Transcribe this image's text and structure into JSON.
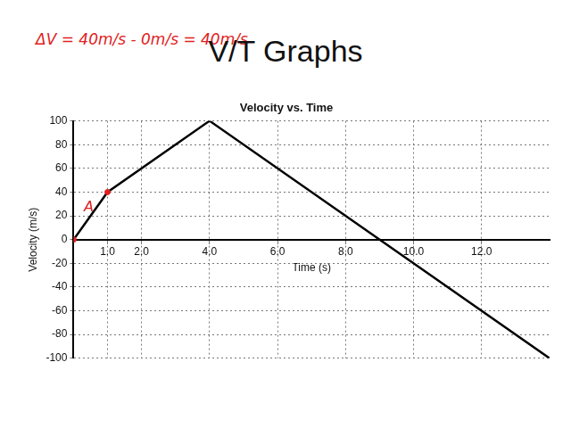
{
  "slide": {
    "title": "V/T Graphs",
    "note": "ΔV = 40m/s - 0m/s = 40m/s"
  },
  "chart_data": {
    "type": "line",
    "title": "Velocity vs. Time",
    "x_label": "Time (s)",
    "y_label": "Velocity (m/s)",
    "x": [
      0,
      1,
      4,
      14
    ],
    "values": [
      0,
      40,
      100,
      -100
    ],
    "color": "#000000",
    "marker": "none",
    "marked_points": {
      "x": [
        0,
        1
      ],
      "values": [
        0,
        40
      ],
      "color": "#e02020"
    },
    "annotations": [
      {
        "text": "A",
        "x": 0.45,
        "y": 27,
        "color": "#e02020"
      }
    ],
    "xlim": [
      0,
      14
    ],
    "xticks": [
      {
        "value": 1,
        "label": "1.0"
      },
      {
        "value": 2,
        "label": "2.0"
      },
      {
        "value": 4,
        "label": "4.0"
      },
      {
        "value": 6,
        "label": "6.0"
      },
      {
        "value": 8,
        "label": "8.0"
      },
      {
        "value": 10,
        "label": "10.0"
      },
      {
        "value": 12,
        "label": "12.0"
      }
    ],
    "ylim": [
      -100,
      100
    ],
    "yticks": [
      -100,
      -80,
      -60,
      -40,
      -20,
      0,
      20,
      40,
      60,
      80,
      100
    ],
    "grid": true
  }
}
